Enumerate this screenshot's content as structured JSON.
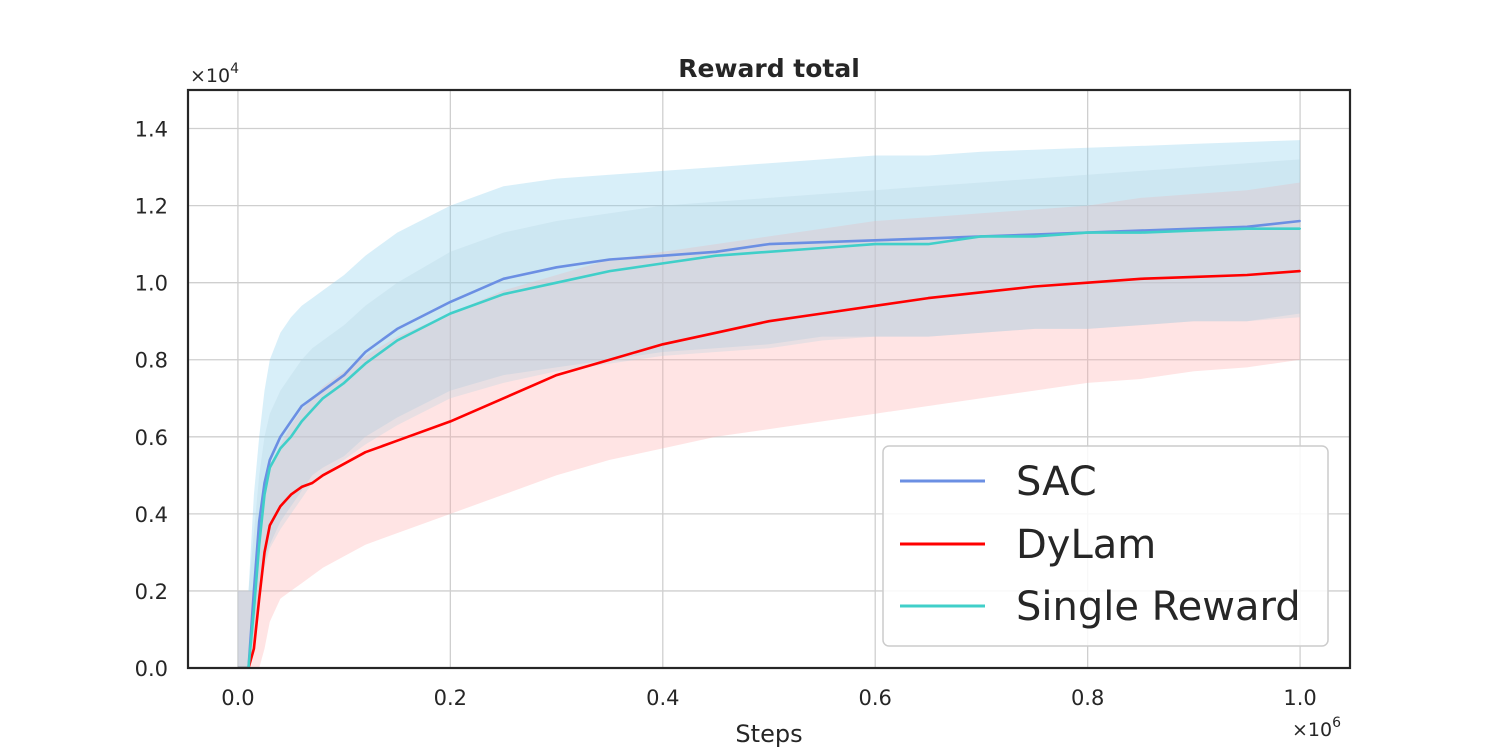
{
  "chart_data": {
    "type": "line",
    "title": "Reward total",
    "xlabel": "Steps",
    "ylabel": "",
    "x_multiplier": "×10",
    "x_multiplier_exp": "6",
    "y_multiplier": "×10",
    "y_multiplier_exp": "4",
    "xlim": [
      -0.047,
      1.047
    ],
    "ylim": [
      0.0,
      1.5
    ],
    "x_ticks": [
      0.0,
      0.2,
      0.4,
      0.6,
      0.8,
      1.0
    ],
    "x_tick_labels": [
      "0.0",
      "0.2",
      "0.4",
      "0.6",
      "0.8",
      "1.0"
    ],
    "y_ticks": [
      0.0,
      0.2,
      0.4,
      0.6,
      0.8,
      1.0,
      1.2,
      1.4
    ],
    "y_tick_labels": [
      "0.0",
      "0.2",
      "0.4",
      "0.6",
      "0.8",
      "1.0",
      "1.2",
      "1.4"
    ],
    "grid": true,
    "legend_position": "lower-right",
    "series": [
      {
        "name": "SAC",
        "color": "#6b8fe3",
        "band_color": "#87ceeb",
        "x": [
          0.0,
          0.01,
          0.015,
          0.02,
          0.025,
          0.03,
          0.04,
          0.05,
          0.06,
          0.07,
          0.08,
          0.1,
          0.12,
          0.15,
          0.2,
          0.25,
          0.3,
          0.35,
          0.4,
          0.45,
          0.5,
          0.55,
          0.6,
          0.65,
          0.7,
          0.75,
          0.8,
          0.85,
          0.9,
          0.95,
          1.0
        ],
        "mean": [
          0.0,
          0.0,
          0.2,
          0.38,
          0.48,
          0.54,
          0.6,
          0.64,
          0.68,
          0.7,
          0.72,
          0.76,
          0.82,
          0.88,
          0.95,
          1.01,
          1.04,
          1.06,
          1.07,
          1.08,
          1.1,
          1.105,
          1.11,
          1.115,
          1.12,
          1.125,
          1.13,
          1.135,
          1.14,
          1.145,
          1.16
        ],
        "lower": [
          0.0,
          0.0,
          0.05,
          0.2,
          0.28,
          0.32,
          0.38,
          0.42,
          0.46,
          0.5,
          0.52,
          0.55,
          0.6,
          0.65,
          0.72,
          0.76,
          0.78,
          0.8,
          0.82,
          0.83,
          0.84,
          0.86,
          0.86,
          0.86,
          0.87,
          0.88,
          0.88,
          0.89,
          0.9,
          0.9,
          0.92
        ],
        "upper": [
          0.2,
          0.2,
          0.45,
          0.6,
          0.72,
          0.8,
          0.87,
          0.91,
          0.94,
          0.96,
          0.98,
          1.02,
          1.07,
          1.13,
          1.2,
          1.25,
          1.27,
          1.28,
          1.29,
          1.3,
          1.31,
          1.32,
          1.33,
          1.33,
          1.34,
          1.345,
          1.35,
          1.355,
          1.36,
          1.365,
          1.37
        ]
      },
      {
        "name": "DyLam",
        "color": "#ff0000",
        "band_color": "#ffaaaa",
        "x": [
          0.0,
          0.01,
          0.015,
          0.02,
          0.025,
          0.03,
          0.04,
          0.05,
          0.06,
          0.07,
          0.08,
          0.1,
          0.12,
          0.15,
          0.2,
          0.25,
          0.3,
          0.35,
          0.4,
          0.45,
          0.5,
          0.55,
          0.6,
          0.65,
          0.7,
          0.75,
          0.8,
          0.85,
          0.9,
          0.95,
          1.0
        ],
        "mean": [
          0.0,
          0.0,
          0.05,
          0.18,
          0.3,
          0.37,
          0.42,
          0.45,
          0.47,
          0.48,
          0.5,
          0.53,
          0.56,
          0.59,
          0.64,
          0.7,
          0.76,
          0.8,
          0.84,
          0.87,
          0.9,
          0.92,
          0.94,
          0.96,
          0.975,
          0.99,
          1.0,
          1.01,
          1.015,
          1.02,
          1.03
        ],
        "lower": [
          0.0,
          0.0,
          0.0,
          0.0,
          0.05,
          0.12,
          0.18,
          0.2,
          0.22,
          0.24,
          0.26,
          0.29,
          0.32,
          0.35,
          0.4,
          0.45,
          0.5,
          0.54,
          0.57,
          0.6,
          0.62,
          0.64,
          0.66,
          0.68,
          0.7,
          0.72,
          0.74,
          0.75,
          0.77,
          0.78,
          0.8
        ],
        "upper": [
          0.2,
          0.2,
          0.2,
          0.33,
          0.45,
          0.52,
          0.58,
          0.63,
          0.67,
          0.7,
          0.73,
          0.77,
          0.81,
          0.86,
          0.92,
          0.98,
          1.02,
          1.06,
          1.08,
          1.1,
          1.12,
          1.14,
          1.16,
          1.17,
          1.18,
          1.19,
          1.2,
          1.22,
          1.23,
          1.24,
          1.26
        ]
      },
      {
        "name": "Single Reward",
        "color": "#40cfc9",
        "band_color": "#b8d6e4",
        "x": [
          0.0,
          0.01,
          0.015,
          0.02,
          0.025,
          0.03,
          0.04,
          0.05,
          0.06,
          0.07,
          0.08,
          0.1,
          0.12,
          0.15,
          0.2,
          0.25,
          0.3,
          0.35,
          0.4,
          0.45,
          0.5,
          0.55,
          0.6,
          0.65,
          0.7,
          0.75,
          0.8,
          0.85,
          0.9,
          0.95,
          1.0
        ],
        "mean": [
          0.0,
          0.0,
          0.15,
          0.32,
          0.45,
          0.52,
          0.57,
          0.6,
          0.64,
          0.67,
          0.7,
          0.74,
          0.79,
          0.85,
          0.92,
          0.97,
          1.0,
          1.03,
          1.05,
          1.07,
          1.08,
          1.09,
          1.1,
          1.1,
          1.12,
          1.12,
          1.13,
          1.13,
          1.135,
          1.14,
          1.14
        ],
        "lower": [
          0.0,
          0.0,
          0.05,
          0.15,
          0.26,
          0.31,
          0.36,
          0.4,
          0.44,
          0.48,
          0.5,
          0.54,
          0.58,
          0.63,
          0.7,
          0.74,
          0.77,
          0.79,
          0.81,
          0.82,
          0.83,
          0.85,
          0.86,
          0.86,
          0.87,
          0.88,
          0.88,
          0.89,
          0.9,
          0.9,
          0.91
        ],
        "upper": [
          0.2,
          0.2,
          0.35,
          0.5,
          0.6,
          0.66,
          0.72,
          0.76,
          0.8,
          0.83,
          0.85,
          0.89,
          0.94,
          1.0,
          1.08,
          1.13,
          1.16,
          1.18,
          1.2,
          1.21,
          1.22,
          1.23,
          1.24,
          1.25,
          1.26,
          1.27,
          1.28,
          1.29,
          1.3,
          1.31,
          1.32
        ]
      }
    ]
  }
}
